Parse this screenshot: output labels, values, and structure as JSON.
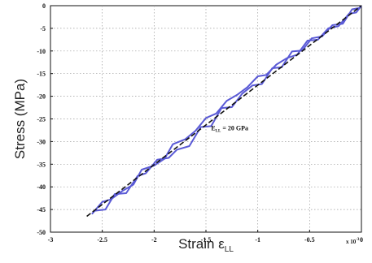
{
  "chart_data": {
    "type": "line",
    "xlabel": "Strain ε",
    "xlabel_subscript": "LL",
    "ylabel": "Stress (MPa)",
    "x_multiplier": "x 10",
    "x_multiplier_exponent": "-3",
    "xlim": [
      -3,
      0
    ],
    "ylim": [
      0,
      -50
    ],
    "x_ticks": [
      -3,
      -2.5,
      -2,
      -1.5,
      -1,
      -0.5,
      0
    ],
    "x_tick_labels": [
      "-3",
      "-2.5",
      "-2",
      "-1.5",
      "-1",
      "-0.5",
      "0"
    ],
    "y_ticks": [
      0,
      -5,
      -10,
      -15,
      -20,
      -25,
      -30,
      -35,
      -40,
      -45,
      -50
    ],
    "y_tick_labels": [
      "0",
      "-5",
      "-10",
      "-15",
      "-20",
      "-25",
      "-30",
      "-35",
      "-40",
      "-45",
      "-50"
    ],
    "grid": true,
    "annotation": "E_LL = 20 GPa",
    "annotation_text": "E",
    "annotation_subscript": "LL",
    "annotation_rest": " = 20 GPa",
    "annotation_anchor": {
      "x": -1.45,
      "y": -27.5
    },
    "series": [
      {
        "style": "solid",
        "color": "#5a5ad6",
        "x": [
          -2.6,
          -2.5,
          -2.42,
          -2.3,
          -2.2,
          -2.12,
          -2.0,
          -1.9,
          -1.82,
          -1.7,
          -1.6,
          -1.5,
          -1.4,
          -1.3,
          -1.2,
          -1.1,
          -1.0,
          -0.92,
          -0.82,
          -0.72,
          -0.62,
          -0.52,
          -0.42,
          -0.32,
          -0.22,
          -0.12,
          -0.05,
          0.0
        ],
        "y": [
          -46.0,
          -43.3,
          -42.8,
          -40.8,
          -39.5,
          -36.2,
          -35.3,
          -33.8,
          -30.6,
          -29.5,
          -27.6,
          -24.8,
          -23.8,
          -21.0,
          -19.7,
          -18.0,
          -15.6,
          -15.3,
          -13.0,
          -11.6,
          -10.8,
          -7.7,
          -7.5,
          -5.0,
          -4.5,
          -1.8,
          -1.5,
          0.0
        ]
      },
      {
        "style": "solid",
        "color": "#5a5ad6",
        "x": [
          -2.58,
          -2.47,
          -2.38,
          -2.27,
          -2.16,
          -2.08,
          -1.97,
          -1.86,
          -1.78,
          -1.66,
          -1.55,
          -1.45,
          -1.35,
          -1.25,
          -1.15,
          -1.05,
          -0.96,
          -0.86,
          -0.77,
          -0.67,
          -0.57,
          -0.48,
          -0.38,
          -0.28,
          -0.18,
          -0.09,
          -0.02,
          0.0
        ],
        "y": [
          -45.3,
          -45.0,
          -41.6,
          -41.4,
          -37.6,
          -37.0,
          -34.0,
          -33.6,
          -31.8,
          -31.0,
          -26.8,
          -26.6,
          -22.6,
          -22.4,
          -19.4,
          -17.6,
          -17.3,
          -13.8,
          -13.6,
          -10.1,
          -9.9,
          -7.2,
          -6.8,
          -4.3,
          -4.0,
          -0.8,
          -0.5,
          0.0
        ]
      },
      {
        "style": "dashed",
        "color": "#111111",
        "x": [
          -2.65,
          0.0
        ],
        "y": [
          -46.5,
          0.0
        ]
      }
    ]
  }
}
